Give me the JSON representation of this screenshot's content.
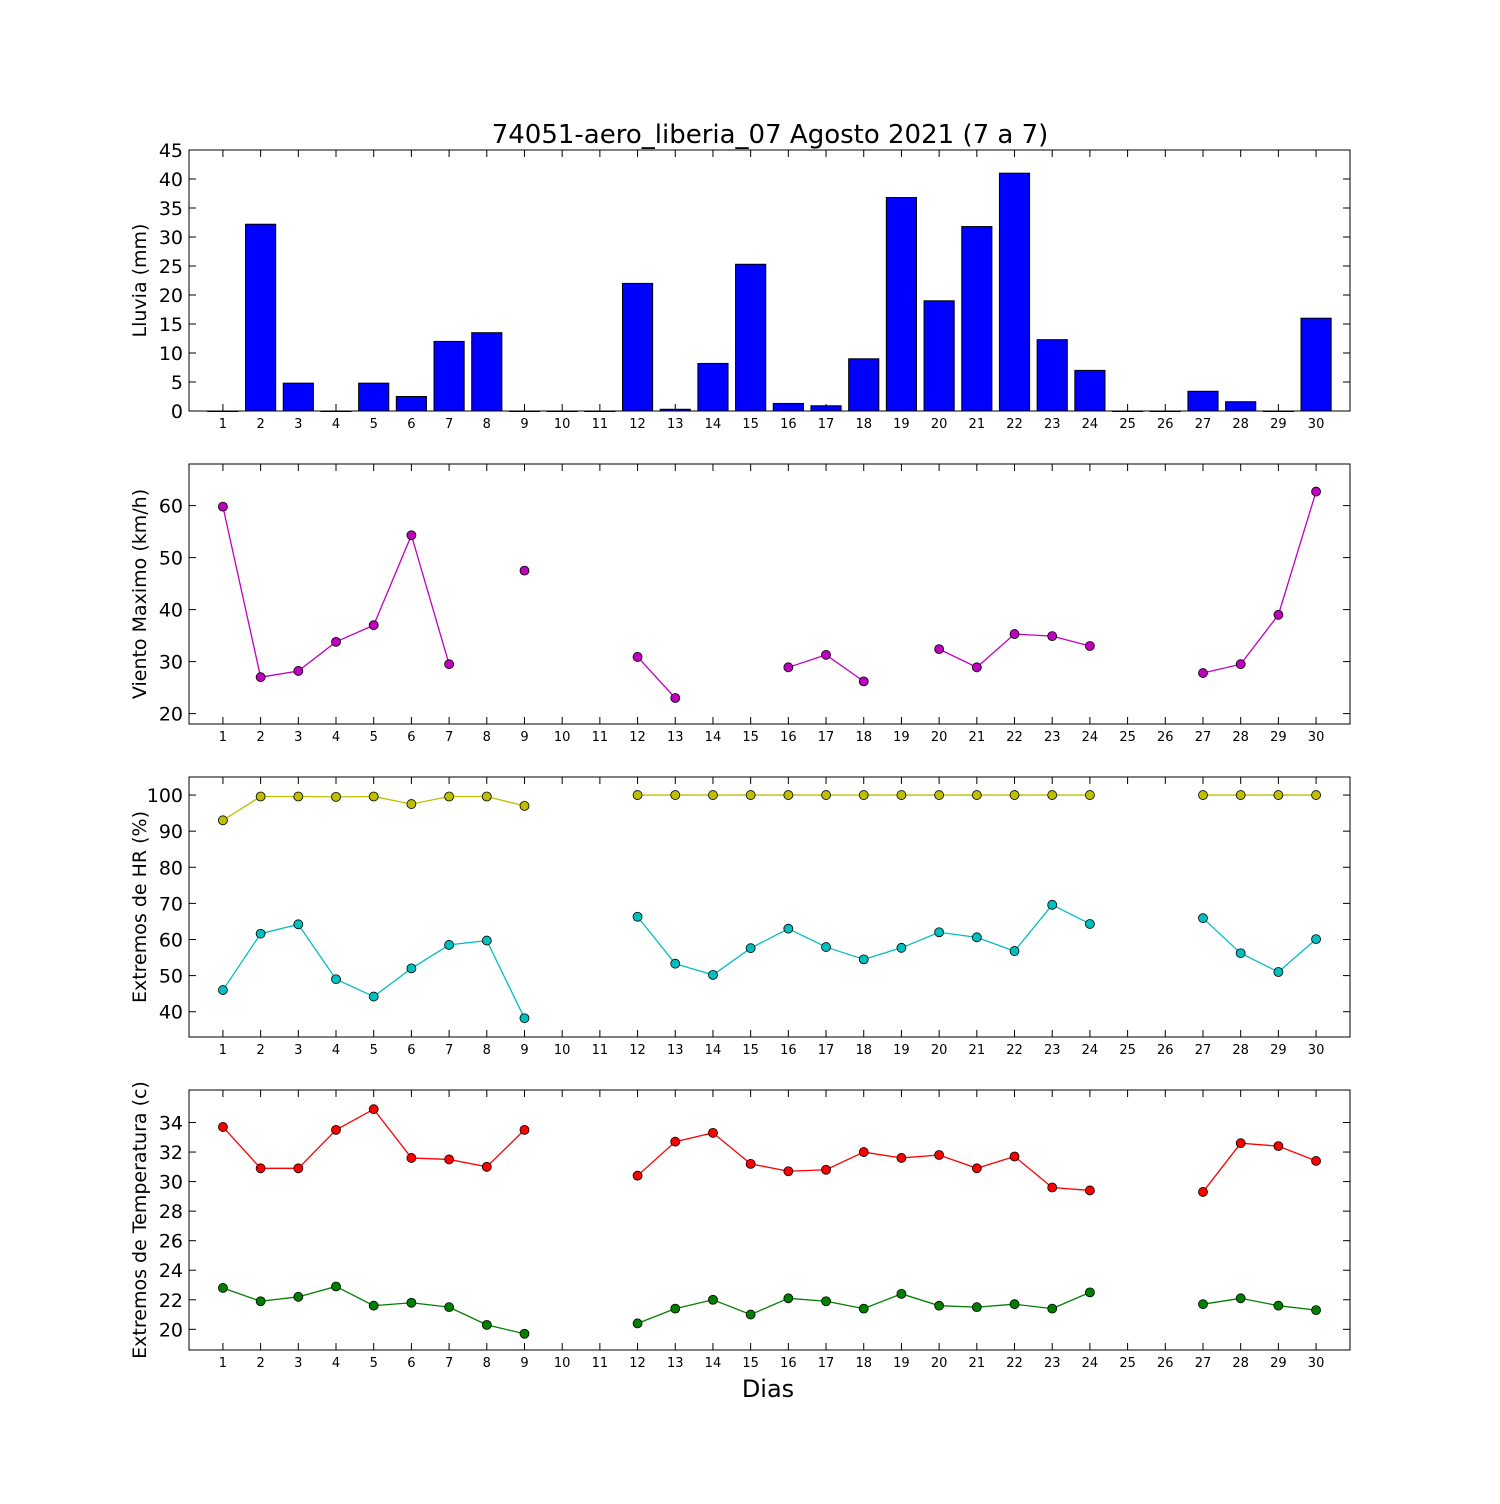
{
  "title": "74051-aero_liberia_07 Agosto 2021  (7 a 7)",
  "xlabel": "Dias",
  "days": [
    1,
    2,
    3,
    4,
    5,
    6,
    7,
    8,
    9,
    10,
    11,
    12,
    13,
    14,
    15,
    16,
    17,
    18,
    19,
    20,
    21,
    22,
    23,
    24,
    25,
    26,
    27,
    28,
    29,
    30
  ],
  "chart_data": [
    {
      "type": "bar",
      "ylabel": "Lluvia (mm)",
      "ylim": [
        0,
        45
      ],
      "yticks": [
        0,
        5,
        10,
        15,
        20,
        25,
        30,
        35,
        40,
        45
      ],
      "series": [
        {
          "values": [
            0,
            32.2,
            4.8,
            0,
            4.8,
            2.5,
            12,
            13.5,
            0,
            0,
            0,
            22,
            0.3,
            8.2,
            25.3,
            1.3,
            0.9,
            9,
            36.8,
            19,
            31.8,
            41,
            12.3,
            7,
            0,
            0,
            3.4,
            1.6,
            0,
            16
          ],
          "color": "#0000ff"
        }
      ]
    },
    {
      "type": "line",
      "ylabel": "Viento Maximo (km/h)",
      "ylim": [
        18,
        68
      ],
      "yticks": [
        20,
        30,
        40,
        50,
        60
      ],
      "series": [
        {
          "values": [
            59.8,
            27,
            28.2,
            33.8,
            37,
            54.3,
            29.5,
            null,
            47.5,
            null,
            null,
            30.9,
            23,
            null,
            null,
            28.9,
            31.3,
            26.2,
            null,
            32.4,
            28.9,
            35.3,
            34.9,
            33,
            null,
            null,
            27.8,
            29.5,
            39,
            62.7
          ],
          "color": "#bf00bf"
        }
      ]
    },
    {
      "type": "line",
      "ylabel": "Extremos de HR (%)",
      "ylim": [
        33,
        105
      ],
      "yticks": [
        40,
        50,
        60,
        70,
        80,
        90,
        100
      ],
      "series": [
        {
          "values": [
            93,
            99.6,
            99.6,
            99.5,
            99.6,
            97.5,
            99.6,
            99.6,
            97,
            null,
            null,
            100,
            100,
            100,
            100,
            100,
            100,
            100,
            100,
            100,
            100,
            100,
            100,
            100,
            null,
            null,
            100,
            100,
            100,
            100
          ],
          "color": "#bfbf00"
        },
        {
          "values": [
            46,
            61.6,
            64.2,
            49,
            44.2,
            52,
            58.5,
            59.7,
            38.2,
            null,
            null,
            66.3,
            53.3,
            50.2,
            57.6,
            63,
            57.9,
            54.5,
            57.7,
            62,
            60.6,
            56.8,
            69.6,
            64.3,
            null,
            null,
            65.9,
            56.2,
            51,
            60.1
          ],
          "color": "#00bfbf"
        }
      ]
    },
    {
      "type": "line",
      "ylabel": "Extremos de Temperatura (c)",
      "ylim": [
        18.6,
        36.2
      ],
      "yticks": [
        20,
        22,
        24,
        26,
        28,
        30,
        32,
        34
      ],
      "series": [
        {
          "values": [
            33.7,
            30.9,
            30.9,
            33.5,
            34.9,
            31.6,
            31.5,
            31,
            33.5,
            null,
            null,
            30.4,
            32.7,
            33.3,
            31.2,
            30.7,
            30.8,
            32,
            31.6,
            31.8,
            30.9,
            31.7,
            29.6,
            29.4,
            null,
            null,
            29.3,
            32.6,
            32.4,
            31.4
          ],
          "color": "#ff0000"
        },
        {
          "values": [
            22.8,
            21.9,
            22.2,
            22.9,
            21.6,
            21.8,
            21.5,
            20.3,
            19.7,
            null,
            null,
            20.4,
            21.4,
            22,
            21,
            22.1,
            21.9,
            21.4,
            22.4,
            21.6,
            21.5,
            21.7,
            21.4,
            22.5,
            null,
            null,
            21.7,
            22.1,
            21.6,
            21.3
          ],
          "color": "#007f00"
        }
      ]
    }
  ]
}
